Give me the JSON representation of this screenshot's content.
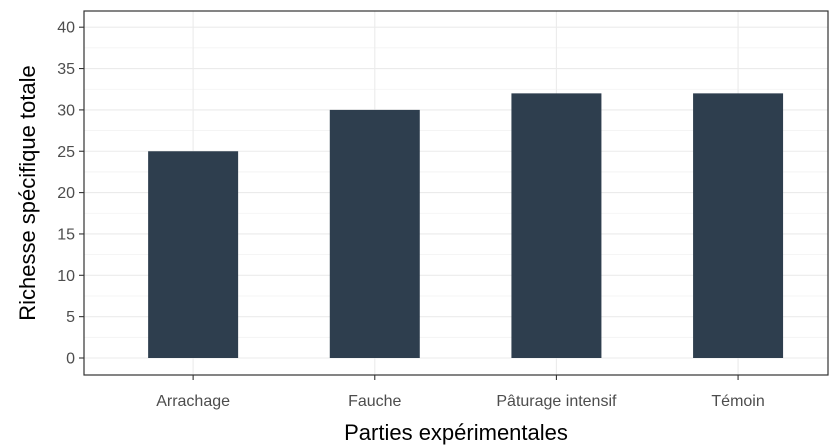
{
  "chart_data": {
    "type": "bar",
    "title": "",
    "xlabel": "Parties expérimentales",
    "ylabel": "Richesse spécifique totale",
    "categories": [
      "Arrachage",
      "Fauche",
      "Pâturage intensif",
      "Témoin"
    ],
    "values": [
      25,
      30,
      32,
      32
    ],
    "ylim": [
      0,
      40
    ],
    "yticks": [
      0,
      5,
      10,
      15,
      20,
      25,
      30,
      35,
      40
    ],
    "grid": true,
    "legend": "none",
    "bar_color": "#2e3e4e"
  }
}
